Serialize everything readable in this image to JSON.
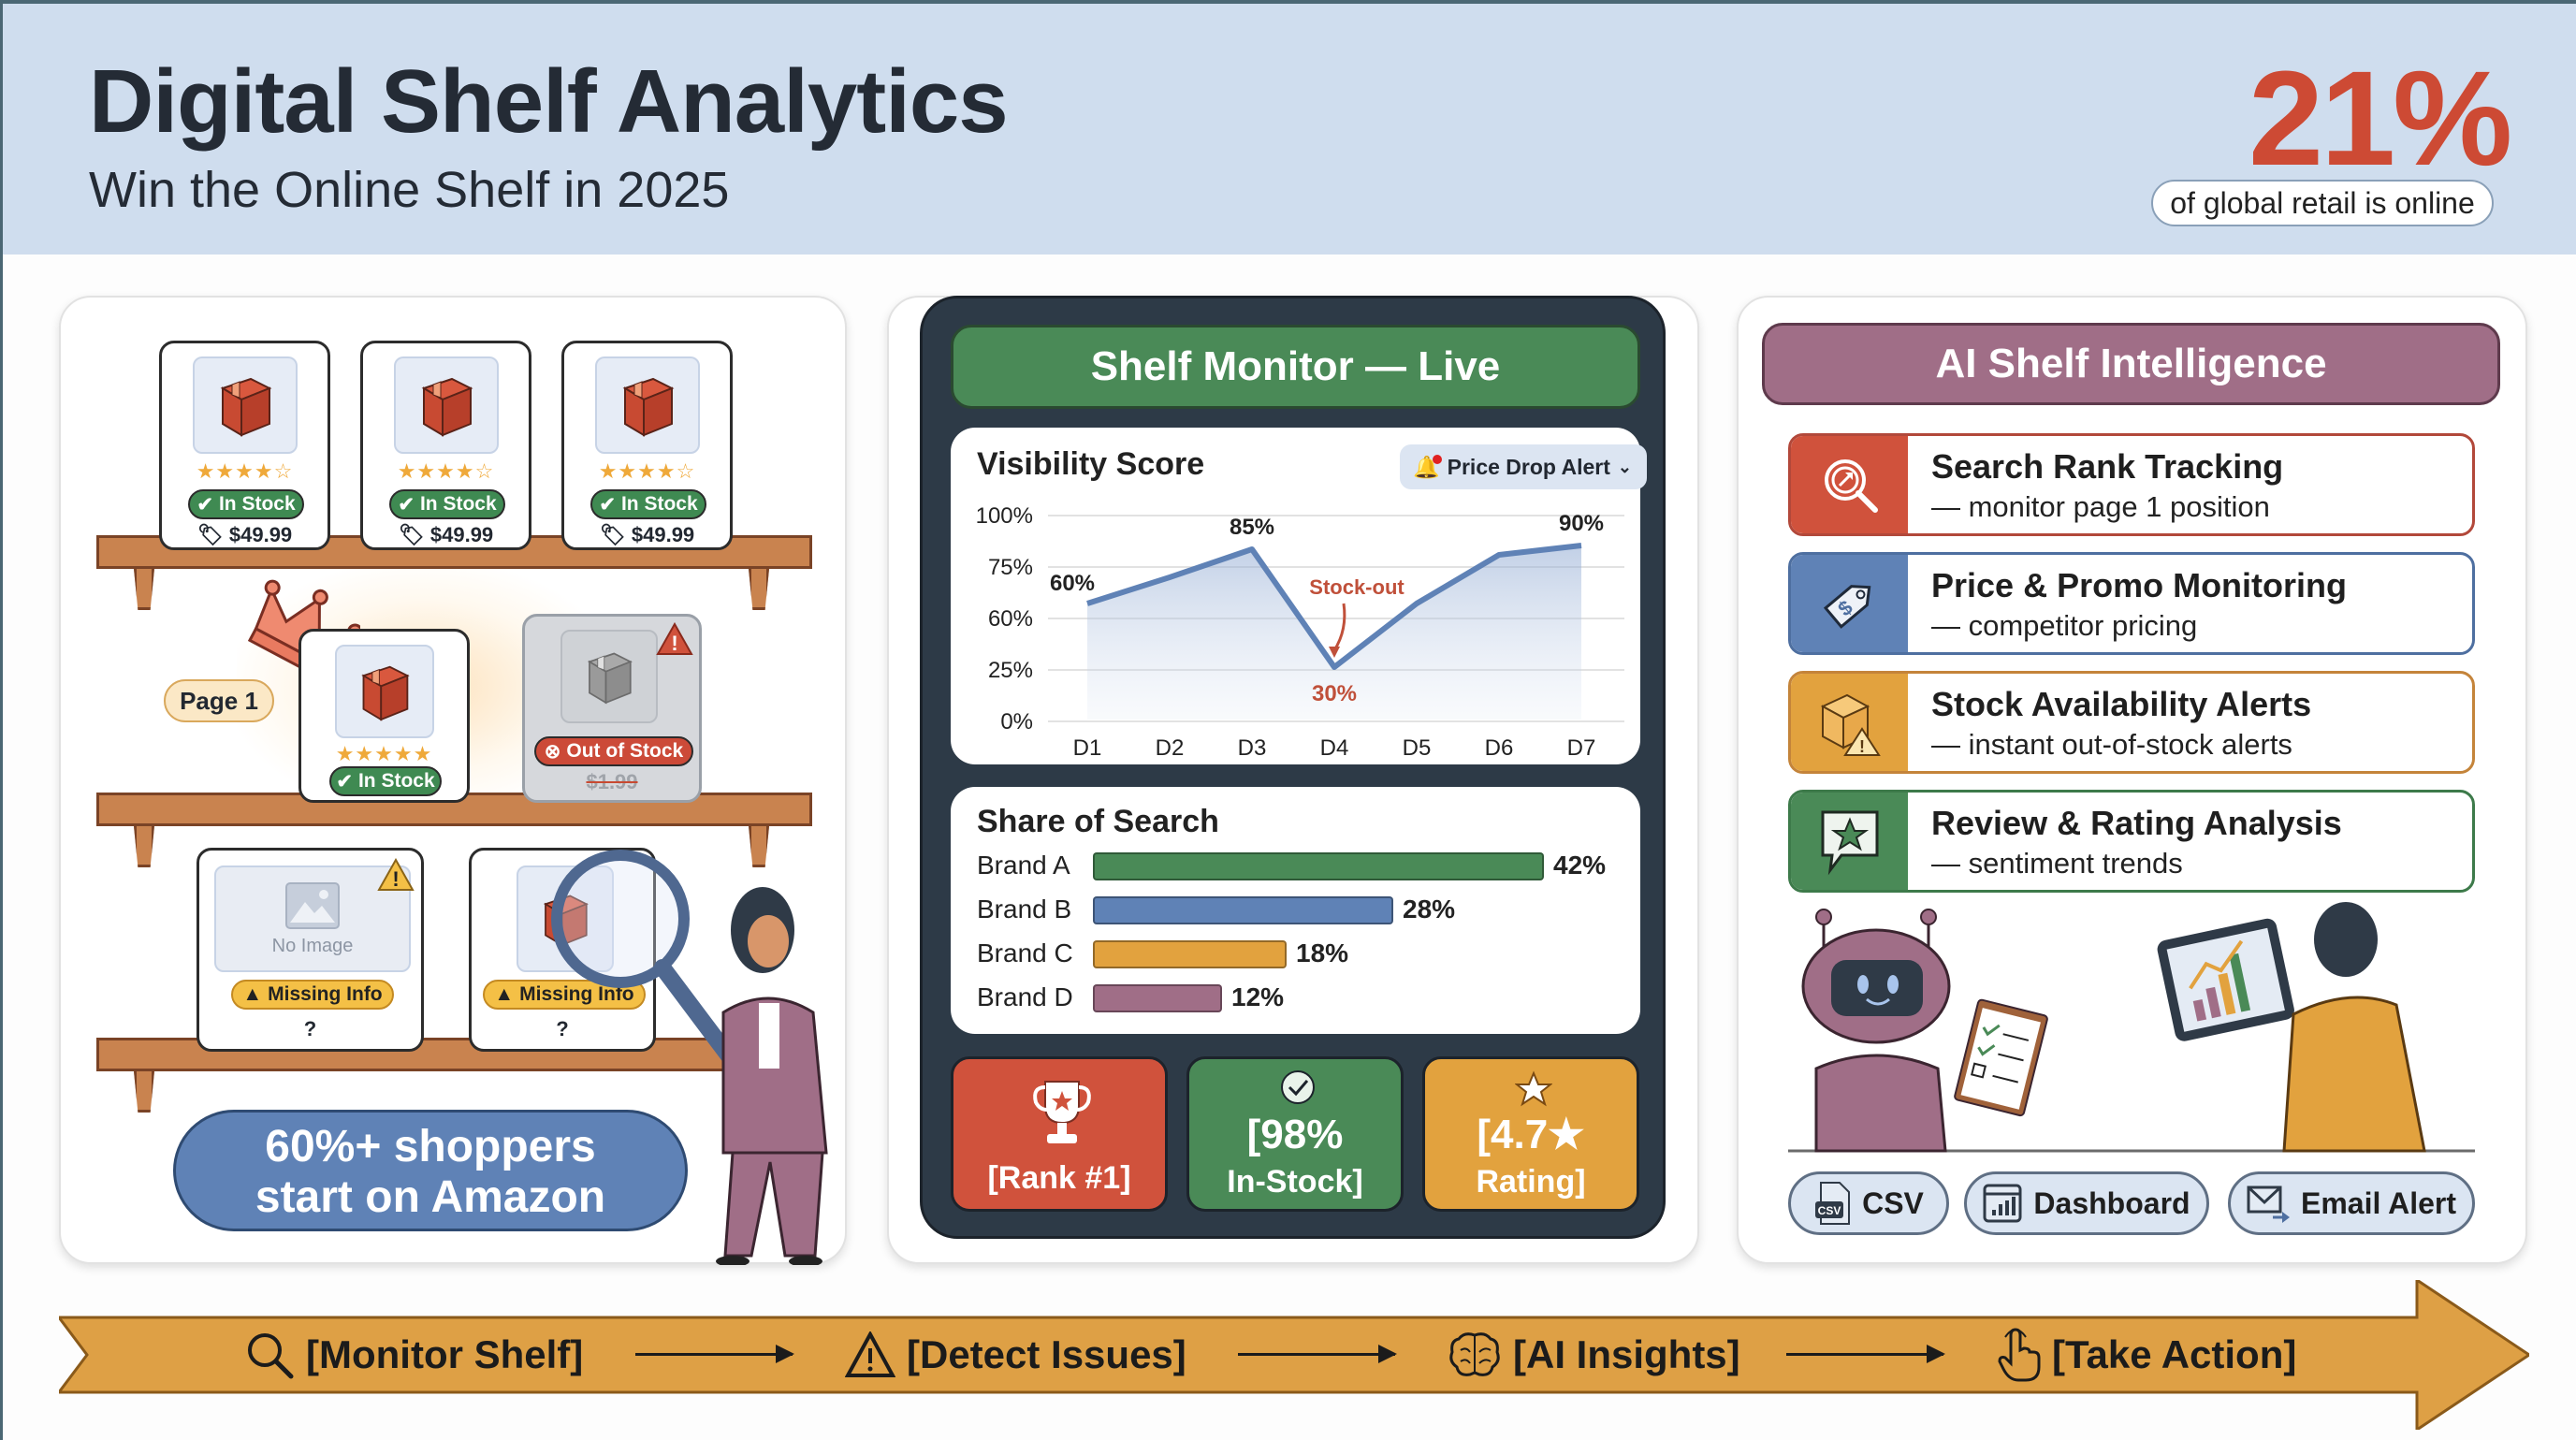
{
  "header": {
    "title": "Digital Shelf Analytics",
    "subtitle": "Win the Online Shelf in 2025",
    "stat_value": "21%",
    "stat_caption": "of global retail is online"
  },
  "shelf_panel": {
    "top_shelf_products": [
      {
        "rating": "★★★★☆",
        "status": "In Stock",
        "price": "$49.99"
      },
      {
        "rating": "★★★★☆",
        "status": "In Stock",
        "price": "$49.99"
      },
      {
        "rating": "★★★★☆",
        "status": "In Stock",
        "price": "$49.99"
      }
    ],
    "page_label": "Page 1",
    "featured_product": {
      "rating": "★★★★★",
      "status": "In Stock"
    },
    "oos_product": {
      "status": "Out of Stock",
      "price": "$1.99"
    },
    "missing_products": [
      {
        "image_placeholder": "No Image",
        "status": "Missing Info",
        "price": "?"
      },
      {
        "status": "Missing Info",
        "price": "?"
      }
    ],
    "callout_line1": "60%+ shoppers",
    "callout_line2": "start on Amazon"
  },
  "monitor": {
    "title": "Shelf Monitor — Live",
    "visibility_title": "Visibility Score",
    "alert_label": "Price Drop Alert",
    "annotation": "Stock-out",
    "share_title": "Share of Search",
    "kpis": [
      {
        "line1": "",
        "line2": "[Rank #1]",
        "color": "#d0523c"
      },
      {
        "line1": "[98%",
        "line2": "In-Stock]",
        "color": "#4a8a57"
      },
      {
        "line1": "[4.7★",
        "line2": "Rating]",
        "color": "#e2a23e"
      }
    ]
  },
  "chart_data": [
    {
      "type": "area",
      "title": "Visibility Score",
      "categories": [
        "D1",
        "D2",
        "D3",
        "D4",
        "D5",
        "D6",
        "D7"
      ],
      "values": [
        60,
        72,
        85,
        30,
        60,
        80,
        90
      ],
      "point_labels": {
        "D1": "60%",
        "D3": "85%",
        "D4": "30%",
        "D7": "90%"
      },
      "annotation": {
        "x": "D4",
        "text": "Stock-out"
      },
      "ytick_labels": [
        "0%",
        "25%",
        "60%",
        "75%",
        "100%"
      ],
      "ylim": [
        0,
        100
      ],
      "grid": true,
      "color": "#5f82b6"
    },
    {
      "type": "bar",
      "orientation": "horizontal",
      "title": "Share of Search",
      "categories": [
        "Brand A",
        "Brand B",
        "Brand C",
        "Brand D"
      ],
      "values": [
        42,
        28,
        18,
        12
      ],
      "value_labels": [
        "42%",
        "28%",
        "18%",
        "12%"
      ],
      "colors": [
        "#4a8a57",
        "#5f82b6",
        "#e2a23e",
        "#a06e87"
      ]
    }
  ],
  "ai_panel": {
    "title": "AI Shelf Intelligence",
    "features": [
      {
        "title": "Search Rank Tracking",
        "subtitle": "— monitor page 1 position",
        "color": "#d0523c"
      },
      {
        "title": "Price & Promo Monitoring",
        "subtitle": "— competitor pricing",
        "color": "#5f82b6"
      },
      {
        "title": "Stock Availability Alerts",
        "subtitle": "— instant out-of-stock alerts",
        "color": "#e2a23e"
      },
      {
        "title": "Review & Rating Analysis",
        "subtitle": "— sentiment trends",
        "color": "#4a8a57"
      }
    ],
    "exports": [
      {
        "label": "CSV",
        "icon": "csv-file-icon"
      },
      {
        "label": "Dashboard",
        "icon": "dashboard-icon"
      },
      {
        "label": "Email Alert",
        "icon": "email-icon"
      }
    ]
  },
  "flow": {
    "steps": [
      {
        "label": "[Monitor Shelf]",
        "icon": "magnifier-icon"
      },
      {
        "label": "[Detect Issues]",
        "icon": "warning-icon"
      },
      {
        "label": "[AI Insights]",
        "icon": "brain-icon"
      },
      {
        "label": "[Take Action]",
        "icon": "pointer-hand-icon"
      }
    ],
    "color": "#dea045"
  }
}
